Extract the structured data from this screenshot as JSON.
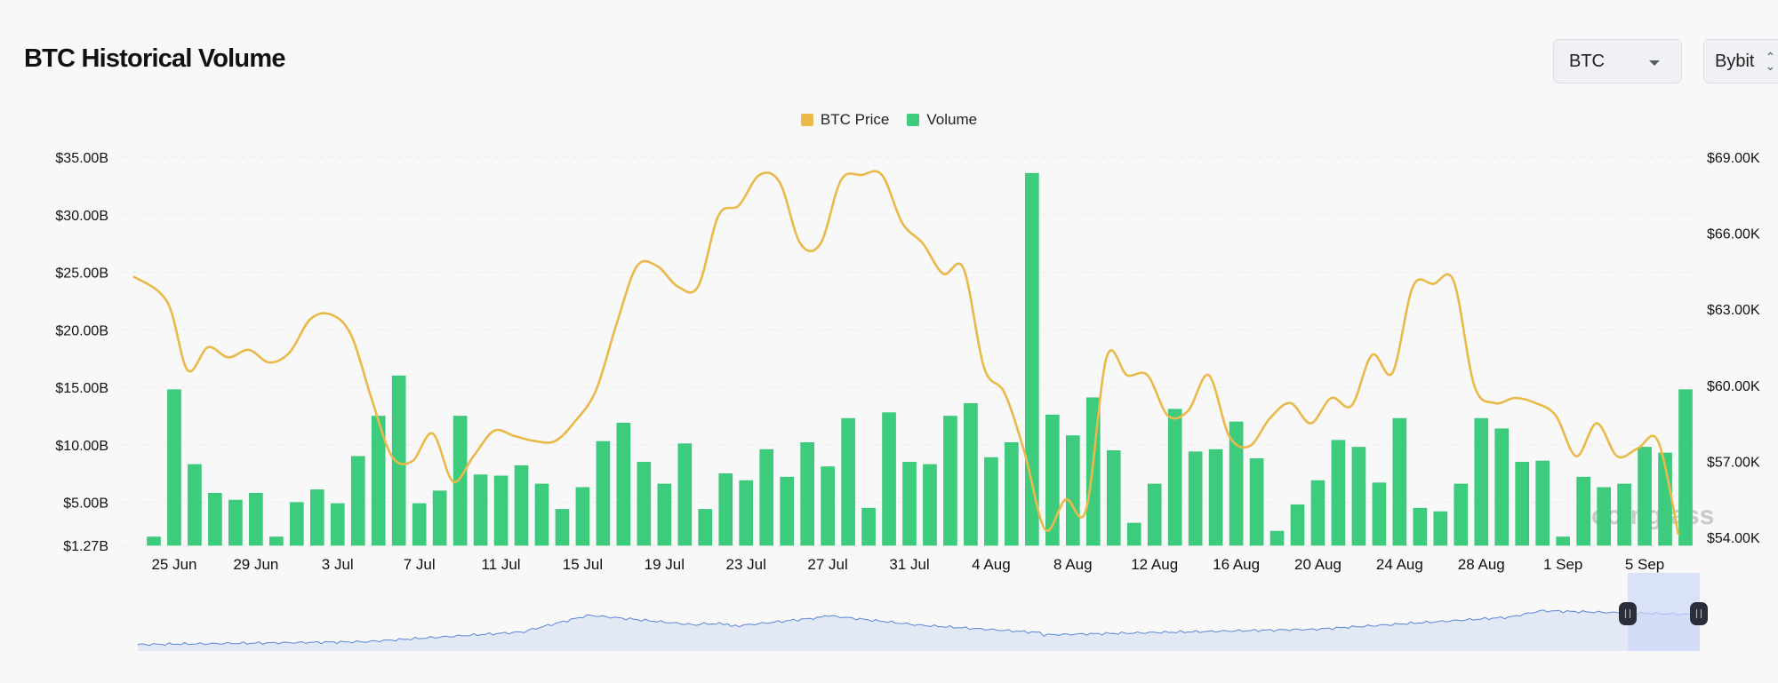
{
  "header": {
    "title": "BTC Historical Volume",
    "coin_select": {
      "value": "BTC",
      "icon": "caret-down-icon"
    },
    "exchange_select": {
      "value": "Bybit",
      "icon": "updown-chevron-icon"
    }
  },
  "legend": [
    {
      "label": "BTC Price",
      "color": "#e9b949"
    },
    {
      "label": "Volume",
      "color": "#3dcb7d"
    }
  ],
  "watermark": "coinglass",
  "chart_data": {
    "type": "bar",
    "title": "BTC Historical Volume",
    "xlabel": "",
    "ylabel": "Volume",
    "y2label": "BTC Price",
    "grid": true,
    "legend_position": "top-center",
    "left_axis_ticks": [
      "$35.00B",
      "$30.00B",
      "$25.00B",
      "$20.00B",
      "$15.00B",
      "$10.00B",
      "$5.00B",
      "$1.27B"
    ],
    "right_axis_ticks": [
      "$69.00K",
      "$66.00K",
      "$63.00K",
      "$60.00K",
      "$57.00K",
      "$54.00K"
    ],
    "ylim": [
      1.27,
      35
    ],
    "y2lim": [
      54000,
      69000
    ],
    "x_tick_labels": [
      "25 Jun",
      "29 Jun",
      "3 Jul",
      "7 Jul",
      "11 Jul",
      "15 Jul",
      "19 Jul",
      "23 Jul",
      "27 Jul",
      "31 Jul",
      "4 Aug",
      "8 Aug",
      "12 Aug",
      "16 Aug",
      "20 Aug",
      "24 Aug",
      "28 Aug",
      "1 Sep",
      "5 Sep"
    ],
    "categories": [
      "24 Jun",
      "25 Jun",
      "26 Jun",
      "27 Jun",
      "28 Jun",
      "29 Jun",
      "30 Jun",
      "1 Jul",
      "2 Jul",
      "3 Jul",
      "4 Jul",
      "5 Jul",
      "6 Jul",
      "7 Jul",
      "8 Jul",
      "9 Jul",
      "10 Jul",
      "11 Jul",
      "12 Jul",
      "13 Jul",
      "14 Jul",
      "15 Jul",
      "16 Jul",
      "17 Jul",
      "18 Jul",
      "19 Jul",
      "20 Jul",
      "21 Jul",
      "22 Jul",
      "23 Jul",
      "24 Jul",
      "25 Jul",
      "26 Jul",
      "27 Jul",
      "28 Jul",
      "29 Jul",
      "30 Jul",
      "31 Jul",
      "1 Aug",
      "2 Aug",
      "3 Aug",
      "4 Aug",
      "5 Aug",
      "6 Aug",
      "7 Aug",
      "8 Aug",
      "9 Aug",
      "10 Aug",
      "11 Aug",
      "12 Aug",
      "13 Aug",
      "14 Aug",
      "15 Aug",
      "16 Aug",
      "17 Aug",
      "18 Aug",
      "19 Aug",
      "20 Aug",
      "21 Aug",
      "22 Aug",
      "23 Aug",
      "24 Aug",
      "25 Aug",
      "26 Aug",
      "27 Aug",
      "28 Aug",
      "29 Aug",
      "30 Aug",
      "31 Aug",
      "1 Sep",
      "2 Sep",
      "3 Sep",
      "4 Sep",
      "5 Sep",
      "6 Sep",
      "7 Sep"
    ],
    "series": [
      {
        "name": "Volume",
        "axis": "left",
        "unit": "B USD",
        "color": "#3dcb7d",
        "values": [
          2.0,
          14.8,
          8.3,
          5.8,
          5.2,
          5.8,
          2.0,
          5.0,
          6.1,
          4.9,
          9.0,
          12.5,
          16.0,
          4.9,
          6.0,
          12.5,
          7.4,
          7.3,
          8.2,
          6.6,
          4.4,
          6.3,
          10.3,
          11.9,
          8.5,
          6.6,
          10.1,
          4.4,
          7.5,
          6.9,
          9.6,
          7.2,
          10.2,
          8.1,
          12.3,
          4.5,
          12.8,
          8.5,
          8.3,
          12.5,
          13.6,
          8.9,
          10.2,
          33.6,
          12.6,
          10.8,
          14.1,
          9.5,
          3.2,
          6.6,
          13.1,
          9.4,
          9.6,
          12.0,
          8.8,
          2.5,
          4.8,
          6.9,
          10.4,
          9.8,
          6.7,
          12.3,
          4.5,
          4.2,
          6.6,
          12.3,
          11.4,
          8.5,
          8.6,
          2.0,
          7.2,
          6.3,
          6.6,
          9.8,
          9.3,
          14.8
        ]
      },
      {
        "name": "BTC Price",
        "axis": "right",
        "unit": "USD",
        "color": "#e9b949",
        "values": [
          64300,
          63300,
          60600,
          61500,
          61100,
          61400,
          60900,
          61300,
          62600,
          62800,
          62000,
          59500,
          57200,
          57000,
          58100,
          56200,
          57200,
          58200,
          58000,
          57800,
          57800,
          58600,
          59800,
          62400,
          64700,
          64700,
          63900,
          63900,
          66700,
          67100,
          68300,
          68000,
          65600,
          65600,
          68100,
          68300,
          68300,
          66400,
          65600,
          64400,
          64600,
          60700,
          59700,
          57300,
          54300,
          55500,
          55100,
          61100,
          60400,
          60400,
          58800,
          59000,
          60400,
          58000,
          57600,
          58700,
          59300,
          58500,
          59500,
          59200,
          61200,
          60500,
          63900,
          64000,
          64100,
          60000,
          59300,
          59500,
          59300,
          58800,
          57200,
          58500,
          57200,
          57500,
          57800,
          54100
        ]
      }
    ]
  }
}
